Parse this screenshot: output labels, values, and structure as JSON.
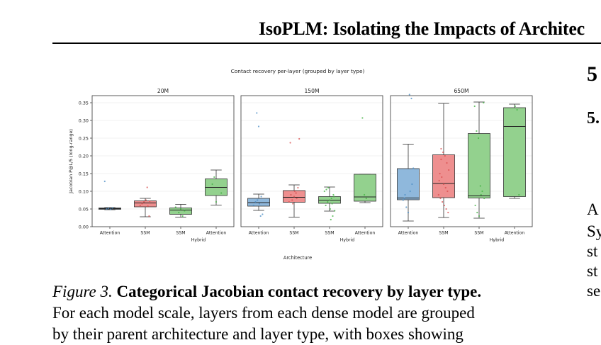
{
  "header": {
    "title": "IsoPLM: Isolating the Impacts of Architec"
  },
  "figure": {
    "label": "Figure 3.",
    "title": "Categorical Jacobian contact recovery by layer type.",
    "text_line": "For each model scale, layers from each dense model are grouped",
    "text_line_cut": "by their parent architecture and layer type, with boxes showing"
  },
  "right_column": {
    "heading": "5",
    "subheading": "5.",
    "lines": [
      "A",
      "Sy",
      "st",
      "st",
      "se"
    ]
  },
  "colors": {
    "attention": "#8fb8dc",
    "ssm": "#ee8f8f",
    "hybrid": "#93d18e",
    "attention_pt": "#4a8cc4",
    "ssm_pt": "#d84c4c",
    "hybrid_pt": "#3fb23f"
  },
  "chart_data": {
    "type": "box",
    "title": "Contact recovery per-layer (grouped by layer type)",
    "xlabel": "Architecture",
    "ylabel": "Jacobian P@L/5 (long-range)",
    "ylim": [
      0,
      0.37
    ],
    "yticks": [
      0.0,
      0.05,
      0.1,
      0.15,
      0.2,
      0.25,
      0.3,
      0.35
    ],
    "hybrid_label": "Hybrid",
    "panels": [
      {
        "title": "20M",
        "boxes": [
          {
            "label": "Attention",
            "cls": "attention",
            "q1": 0.049,
            "med": 0.051,
            "q3": 0.053,
            "wlo": 0.048,
            "whi": 0.054,
            "pts": [
              0.128,
              0.05,
              0.052,
              0.049,
              0.053
            ]
          },
          {
            "label": "SSM",
            "cls": "ssm",
            "q1": 0.056,
            "med": 0.067,
            "q3": 0.073,
            "wlo": 0.028,
            "whi": 0.08,
            "pts": [
              0.111,
              0.03,
              0.06,
              0.065,
              0.07,
              0.075,
              0.058,
              0.072
            ]
          },
          {
            "label": "SSM",
            "cls": "hybrid",
            "q1": 0.035,
            "med": 0.047,
            "q3": 0.053,
            "wlo": 0.027,
            "whi": 0.063,
            "pts": [
              0.04,
              0.05,
              0.03,
              0.045,
              0.055
            ]
          },
          {
            "label": "Attention",
            "cls": "hybrid",
            "q1": 0.088,
            "med": 0.111,
            "q3": 0.135,
            "wlo": 0.061,
            "whi": 0.16,
            "pts": [
              0.095,
              0.12,
              0.14,
              0.07
            ]
          }
        ]
      },
      {
        "title": "150M",
        "boxes": [
          {
            "label": "Attention",
            "cls": "attention",
            "q1": 0.058,
            "med": 0.068,
            "q3": 0.08,
            "wlo": 0.046,
            "whi": 0.092,
            "pts": [
              0.321,
              0.283,
              0.03,
              0.035,
              0.06,
              0.07,
              0.075,
              0.065,
              0.085
            ]
          },
          {
            "label": "SSM",
            "cls": "ssm",
            "q1": 0.069,
            "med": 0.083,
            "q3": 0.102,
            "wlo": 0.027,
            "whi": 0.118,
            "pts": [
              0.248,
              0.237,
              0.075,
              0.085,
              0.095,
              0.11,
              0.07,
              0.09,
              0.065,
              0.1,
              0.08
            ]
          },
          {
            "label": "SSM",
            "cls": "hybrid",
            "q1": 0.066,
            "med": 0.075,
            "q3": 0.085,
            "wlo": 0.044,
            "whi": 0.112,
            "pts": [
              0.02,
              0.03,
              0.045,
              0.06,
              0.07,
              0.075,
              0.08,
              0.09,
              0.1,
              0.105,
              0.11,
              0.05,
              0.065,
              0.085
            ]
          },
          {
            "label": "Attention",
            "cls": "hybrid",
            "q1": 0.072,
            "med": 0.084,
            "q3": 0.148,
            "wlo": 0.068,
            "whi": 0.148,
            "pts": [
              0.307,
              0.09,
              0.08
            ]
          }
        ]
      },
      {
        "title": "650M",
        "boxes": [
          {
            "label": "Attention",
            "cls": "attention",
            "q1": 0.076,
            "med": 0.081,
            "q3": 0.164,
            "wlo": 0.016,
            "whi": 0.233,
            "pts": [
              0.373,
              0.362,
              0.165,
              0.08,
              0.055,
              0.04,
              0.1,
              0.12,
              0.075,
              0.09
            ]
          },
          {
            "label": "SSM",
            "cls": "ssm",
            "q1": 0.082,
            "med": 0.122,
            "q3": 0.203,
            "wlo": 0.026,
            "whi": 0.348,
            "pts": [
              0.22,
              0.21,
              0.2,
              0.18,
              0.16,
              0.15,
              0.14,
              0.12,
              0.11,
              0.1,
              0.09,
              0.08,
              0.07,
              0.06,
              0.05,
              0.04,
              0.13,
              0.19
            ]
          },
          {
            "label": "SSM",
            "cls": "hybrid",
            "q1": 0.081,
            "med": 0.087,
            "q3": 0.263,
            "wlo": 0.024,
            "whi": 0.352,
            "pts": [
              0.35,
              0.34,
              0.27,
              0.25,
              0.115,
              0.1,
              0.08,
              0.06,
              0.04,
              0.03,
              0.09
            ]
          },
          {
            "label": "Attention",
            "cls": "hybrid",
            "q1": 0.085,
            "med": 0.283,
            "q3": 0.336,
            "wlo": 0.08,
            "whi": 0.346,
            "pts": [
              0.34,
              0.33,
              0.09
            ]
          }
        ]
      }
    ]
  }
}
